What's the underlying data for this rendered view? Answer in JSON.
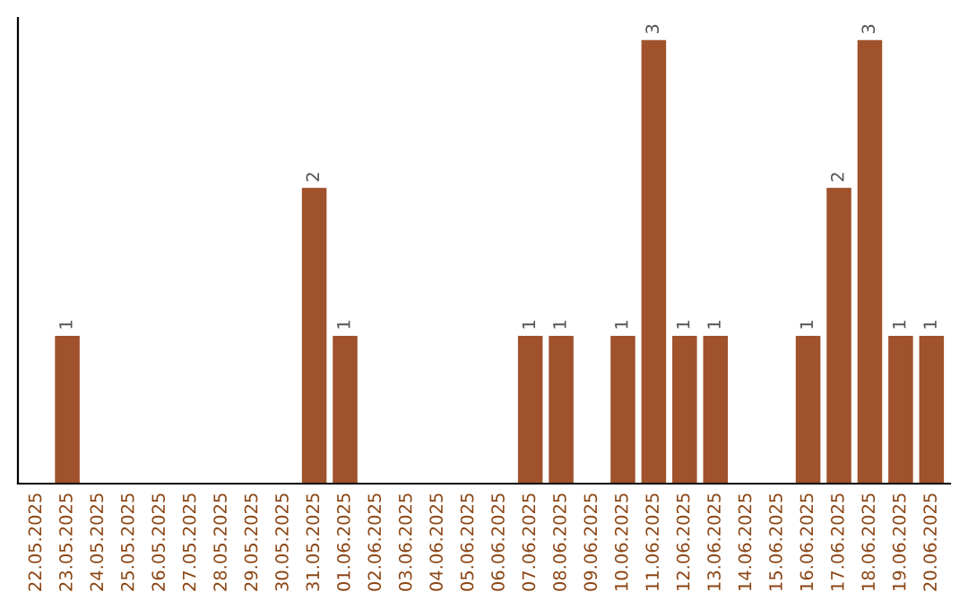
{
  "chart_data": {
    "type": "bar",
    "categories": [
      "22.05.2025",
      "23.05.2025",
      "24.05.2025",
      "25.05.2025",
      "26.05.2025",
      "27.05.2025",
      "28.05.2025",
      "29.05.2025",
      "30.05.2025",
      "31.05.2025",
      "01.06.2025",
      "02.06.2025",
      "03.06.2025",
      "04.06.2025",
      "05.06.2025",
      "06.06.2025",
      "07.06.2025",
      "08.06.2025",
      "09.06.2025",
      "10.06.2025",
      "11.06.2025",
      "12.06.2025",
      "13.06.2025",
      "14.06.2025",
      "15.06.2025",
      "16.06.2025",
      "17.06.2025",
      "18.06.2025",
      "19.06.2025",
      "20.06.2025"
    ],
    "values": [
      0,
      1,
      0,
      0,
      0,
      0,
      0,
      0,
      0,
      2,
      1,
      0,
      0,
      0,
      0,
      0,
      1,
      1,
      0,
      1,
      3,
      1,
      1,
      0,
      0,
      1,
      2,
      3,
      1,
      1
    ],
    "color": "#a0522d",
    "value_labels": [
      null,
      "1",
      null,
      null,
      null,
      null,
      null,
      null,
      null,
      "2",
      "1",
      null,
      null,
      null,
      null,
      null,
      "1",
      "1",
      null,
      "1",
      "3",
      "1",
      "1",
      null,
      null,
      "1",
      "2",
      "3",
      "1",
      "1"
    ],
    "tick_labels": "x",
    "grid": false,
    "legend": false
  }
}
